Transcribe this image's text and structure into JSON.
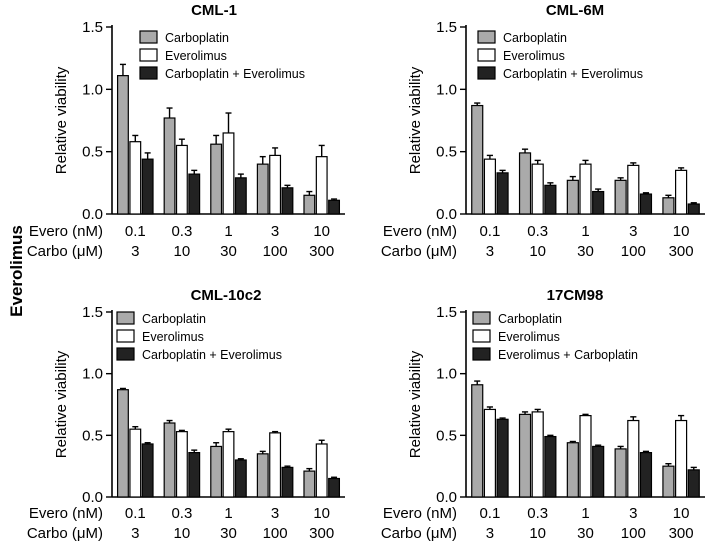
{
  "figure": {
    "side_label": "Everolimus"
  },
  "chart_data": [
    {
      "type": "bar",
      "title": "CML-1",
      "ylabel": "Relative viability",
      "ylim": [
        0,
        1.5
      ],
      "yticks": [
        "0.0",
        "0.5",
        "1.0",
        "1.5"
      ],
      "row_labels": [
        "Evero (nM)",
        "Carbo (μM)"
      ],
      "evero_labels": [
        "0.1",
        "0.3",
        "1",
        "3",
        "10"
      ],
      "carbo_labels": [
        "3",
        "10",
        "30",
        "100",
        "300"
      ],
      "legend_position": "top-right",
      "series": [
        {
          "name": "Carboplatin",
          "color": "#aaaaaa",
          "values": [
            1.11,
            0.77,
            0.56,
            0.4,
            0.15
          ],
          "errors": [
            0.09,
            0.08,
            0.07,
            0.06,
            0.03
          ]
        },
        {
          "name": "Everolimus",
          "color": "#ffffff",
          "values": [
            0.58,
            0.55,
            0.65,
            0.47,
            0.46
          ],
          "errors": [
            0.05,
            0.05,
            0.16,
            0.06,
            0.09
          ]
        },
        {
          "name": "Carboplatin + Everolimus",
          "color": "#222222",
          "values": [
            0.44,
            0.32,
            0.29,
            0.21,
            0.11
          ],
          "errors": [
            0.05,
            0.03,
            0.03,
            0.02,
            0.01
          ]
        }
      ]
    },
    {
      "type": "bar",
      "title": "CML-6M",
      "ylabel": "Relative viability",
      "ylim": [
        0,
        1.5
      ],
      "yticks": [
        "0.0",
        "0.5",
        "1.0",
        "1.5"
      ],
      "row_labels": [
        "Evero (nM)",
        "Carbo (μM)"
      ],
      "evero_labels": [
        "0.1",
        "0.3",
        "1",
        "3",
        "10"
      ],
      "carbo_labels": [
        "3",
        "10",
        "30",
        "100",
        "300"
      ],
      "legend_position": "top-right",
      "series": [
        {
          "name": "Carboplatin",
          "color": "#aaaaaa",
          "values": [
            0.87,
            0.49,
            0.27,
            0.27,
            0.13
          ],
          "errors": [
            0.02,
            0.03,
            0.03,
            0.02,
            0.02
          ]
        },
        {
          "name": "Everolimus",
          "color": "#ffffff",
          "values": [
            0.44,
            0.4,
            0.4,
            0.39,
            0.35
          ],
          "errors": [
            0.03,
            0.03,
            0.03,
            0.02,
            0.02
          ]
        },
        {
          "name": "Carboplatin + Everolimus",
          "color": "#222222",
          "values": [
            0.33,
            0.23,
            0.18,
            0.16,
            0.08
          ],
          "errors": [
            0.02,
            0.02,
            0.02,
            0.01,
            0.01
          ]
        }
      ]
    },
    {
      "type": "bar",
      "title": "CML-10c2",
      "ylabel": "Relative viability",
      "ylim": [
        0,
        1.5
      ],
      "yticks": [
        "0.0",
        "0.5",
        "1.0",
        "1.5"
      ],
      "row_labels": [
        "Evero (nM)",
        "Carbo (μM)"
      ],
      "evero_labels": [
        "0.1",
        "0.3",
        "1",
        "3",
        "10"
      ],
      "carbo_labels": [
        "3",
        "10",
        "30",
        "100",
        "300"
      ],
      "legend_position": "top-right",
      "series": [
        {
          "name": "Carboplatin",
          "color": "#aaaaaa",
          "values": [
            0.87,
            0.6,
            0.41,
            0.35,
            0.21
          ],
          "errors": [
            0.01,
            0.02,
            0.03,
            0.02,
            0.02
          ]
        },
        {
          "name": "Everolimus",
          "color": "#ffffff",
          "values": [
            0.55,
            0.53,
            0.53,
            0.52,
            0.43
          ],
          "errors": [
            0.02,
            0.01,
            0.02,
            0.01,
            0.03
          ]
        },
        {
          "name": "Carboplatin + Everolimus",
          "color": "#222222",
          "values": [
            0.43,
            0.36,
            0.3,
            0.24,
            0.15
          ],
          "errors": [
            0.01,
            0.02,
            0.01,
            0.01,
            0.01
          ]
        }
      ]
    },
    {
      "type": "bar",
      "title": "17CM98",
      "ylabel": "Relative viability",
      "ylim": [
        0,
        1.5
      ],
      "yticks": [
        "0.0",
        "0.5",
        "1.0",
        "1.5"
      ],
      "row_labels": [
        "Evero (nM)",
        "Carbo (μM)"
      ],
      "evero_labels": [
        "0.1",
        "0.3",
        "1",
        "3",
        "10"
      ],
      "carbo_labels": [
        "3",
        "10",
        "30",
        "100",
        "300"
      ],
      "legend_position": "top-right",
      "series": [
        {
          "name": "Carboplatin",
          "color": "#aaaaaa",
          "values": [
            0.91,
            0.67,
            0.44,
            0.39,
            0.25
          ],
          "errors": [
            0.03,
            0.02,
            0.01,
            0.02,
            0.02
          ]
        },
        {
          "name": "Everolimus",
          "color": "#ffffff",
          "values": [
            0.71,
            0.69,
            0.66,
            0.62,
            0.62
          ],
          "errors": [
            0.02,
            0.02,
            0.01,
            0.03,
            0.04
          ]
        },
        {
          "name": "Everolimus + Carboplatin",
          "color": "#222222",
          "values": [
            0.63,
            0.49,
            0.41,
            0.36,
            0.22
          ],
          "errors": [
            0.01,
            0.01,
            0.01,
            0.01,
            0.02
          ]
        }
      ]
    }
  ]
}
